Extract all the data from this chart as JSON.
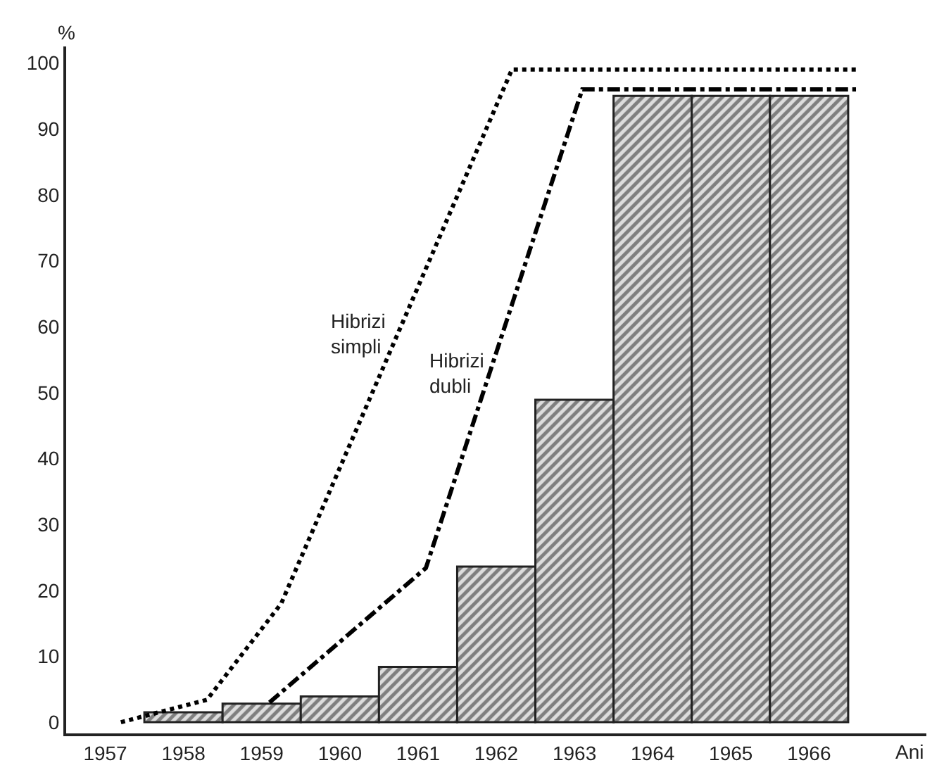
{
  "chart_data": {
    "type": "bar",
    "ylabel": "%",
    "xlabel": "Ani",
    "x": [
      1958,
      1959,
      1960,
      1961,
      1962,
      1963,
      1964,
      1965,
      1966
    ],
    "series": [
      {
        "color": "#222222",
        "values": [
          1.5,
          2.8,
          3.9,
          8.4,
          23.6,
          48.9,
          95,
          95,
          95
        ]
      },
      {
        "type": "line",
        "name": "Hibrizi simpli",
        "color": "#000000",
        "line_style": "dotted",
        "x": [
          1957.2,
          1958.3,
          1959.25,
          1962.2,
          1966.6
        ],
        "values": [
          0,
          3.4,
          18,
          99,
          99
        ]
      },
      {
        "type": "line",
        "name": "Hibrizi dubli",
        "color": "#000000",
        "line_style": "dashdot",
        "x": [
          1959.1,
          1961.1,
          1963.1,
          1966.6
        ],
        "values": [
          3,
          23.4,
          96,
          96
        ]
      }
    ],
    "xlim": [
      1956.5,
      1967.5
    ],
    "xticks": [
      1957,
      1958,
      1959,
      1960,
      1961,
      1962,
      1963,
      1964,
      1965,
      1966
    ],
    "ylim": [
      -1.7,
      102.5
    ],
    "yticks": [
      0,
      10,
      20,
      30,
      40,
      50,
      60,
      70,
      80,
      90,
      100
    ],
    "legend": false
  }
}
